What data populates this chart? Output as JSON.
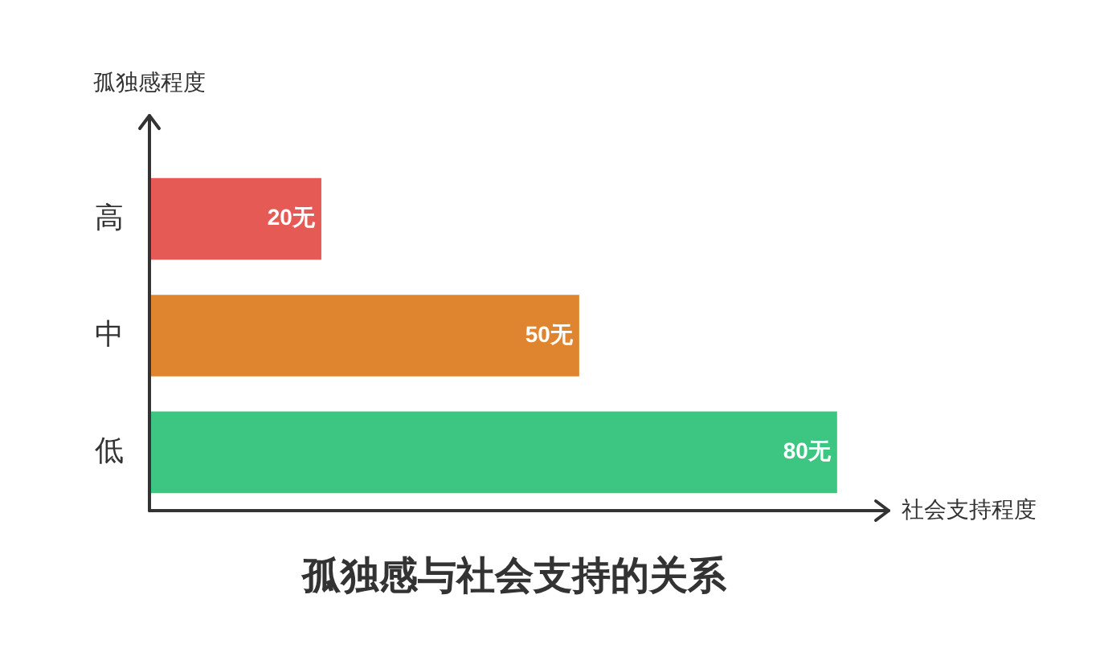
{
  "chart_data": {
    "type": "bar",
    "orientation": "horizontal",
    "title": "孤独感与社会支持的关系",
    "xlabel": "社会支持程度",
    "ylabel": "孤独感程度",
    "categories": [
      "高",
      "中",
      "低"
    ],
    "values": [
      20,
      50,
      80
    ],
    "colors": [
      "#e55a55",
      "#e0852f",
      "#3cc682"
    ],
    "value_labels": [
      "20无",
      "50无",
      "80无"
    ],
    "xlim": [
      0,
      86
    ],
    "tick_labels": "y",
    "legend": false
  }
}
